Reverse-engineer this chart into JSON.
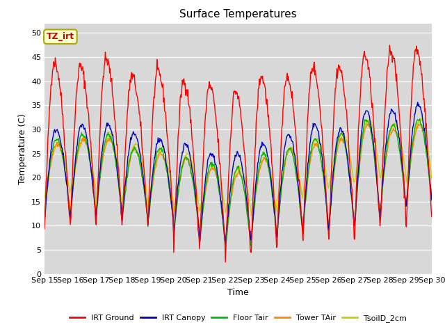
{
  "title": "Surface Temperatures",
  "xlabel": "Time",
  "ylabel": "Temperature (C)",
  "xtick_labels": [
    "Sep 15",
    "Sep 16",
    "Sep 17",
    "Sep 18",
    "Sep 19",
    "Sep 20",
    "Sep 21",
    "Sep 22",
    "Sep 23",
    "Sep 24",
    "Sep 25",
    "Sep 26",
    "Sep 27",
    "Sep 28",
    "Sep 29",
    "Sep 30"
  ],
  "ylim": [
    0,
    52
  ],
  "yticks": [
    0,
    5,
    10,
    15,
    20,
    25,
    30,
    35,
    40,
    45,
    50
  ],
  "legend_labels": [
    "IRT Ground",
    "IRT Canopy",
    "Floor Tair",
    "Tower TAir",
    "TsoilD_2cm"
  ],
  "legend_colors": [
    "#ff0000",
    "#0000bb",
    "#00bb00",
    "#ff8800",
    "#cccc00"
  ],
  "series_colors": [
    "#ff0000",
    "#0000bb",
    "#00bb00",
    "#ff8800",
    "#cccc00"
  ],
  "annotation_text": "TZ_irt",
  "annotation_bg": "#ffffcc",
  "annotation_border": "#aaaa00",
  "background_color": "#d8d8d8",
  "n_days": 15,
  "pts_per_day": 48,
  "irt_ground_day_peaks": [
    44,
    43,
    44.5,
    41,
    42,
    40,
    39,
    38,
    41,
    41,
    43,
    43,
    45.5,
    46.5,
    46.5
  ],
  "irt_ground_night_mins": [
    9,
    10,
    10,
    10,
    10,
    5,
    5,
    3,
    5,
    6,
    7,
    7,
    7,
    10,
    10
  ],
  "canopy_day_peaks": [
    30,
    31,
    31,
    29,
    28,
    27,
    25,
    25,
    27,
    29,
    31,
    30,
    34,
    34,
    35
  ],
  "canopy_night_mins": [
    11,
    11,
    12,
    11,
    10,
    8,
    6,
    6,
    7,
    8,
    9,
    9,
    10,
    13,
    14
  ],
  "floor_day_peaks": [
    28,
    29,
    29,
    26,
    26,
    24,
    23,
    22,
    25,
    26,
    28,
    29,
    32,
    31,
    32
  ],
  "floor_night_mins": [
    12,
    12,
    12,
    11,
    10,
    8,
    6,
    5,
    7,
    8,
    9,
    9,
    10,
    13,
    14
  ],
  "tower_day_peaks": [
    27,
    28,
    28,
    26,
    25,
    24,
    22,
    21,
    24,
    26,
    27,
    28,
    31,
    30,
    31
  ],
  "tower_night_mins": [
    13,
    13,
    13,
    12,
    11,
    9,
    7,
    6,
    8,
    9,
    10,
    10,
    11,
    14,
    15
  ],
  "soil_day_peaks": [
    27,
    28,
    29,
    27,
    26,
    25,
    22,
    22,
    24,
    26,
    28,
    29,
    32,
    31,
    32
  ],
  "soil_night_mins": [
    16,
    17,
    14,
    15,
    14,
    13,
    13,
    13,
    12,
    15,
    17,
    18,
    19,
    20,
    19
  ]
}
